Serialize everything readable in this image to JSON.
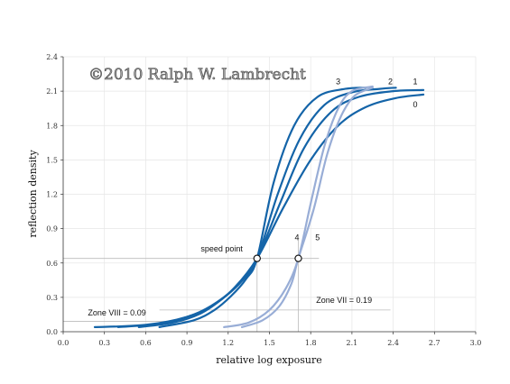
{
  "chart_data": {
    "type": "line",
    "xlabel": "relative log exposure",
    "ylabel": "reflection density",
    "xlim": [
      0.0,
      3.0
    ],
    "ylim": [
      0.0,
      2.4
    ],
    "xticks": [
      "0.0",
      "0.3",
      "0.6",
      "0.9",
      "1.2",
      "1.5",
      "1.8",
      "2.1",
      "2.4",
      "2.7",
      "3.0"
    ],
    "yticks": [
      "0.0",
      "0.3",
      "0.6",
      "0.9",
      "1.2",
      "1.5",
      "1.8",
      "2.1",
      "2.4"
    ],
    "grid": true,
    "watermark": "©2010  Ralph W. Lambrecht",
    "colors": {
      "dark": "#1464a8",
      "light": "#98add6",
      "grid": "#e6e6e6",
      "ref": "#bbbbbb"
    },
    "series": [
      {
        "name": "0",
        "color": "dark",
        "x": [
          0.23,
          0.6,
          0.9,
          1.1,
          1.25,
          1.41,
          1.6,
          1.8,
          2.0,
          2.2,
          2.42,
          2.62
        ],
        "y": [
          0.04,
          0.06,
          0.13,
          0.24,
          0.39,
          0.64,
          1.08,
          1.5,
          1.8,
          1.96,
          2.04,
          2.07
        ]
      },
      {
        "name": "1",
        "color": "dark",
        "x": [
          0.4,
          0.7,
          0.95,
          1.12,
          1.27,
          1.41,
          1.58,
          1.75,
          1.95,
          2.15,
          2.4,
          2.62
        ],
        "y": [
          0.04,
          0.07,
          0.15,
          0.26,
          0.41,
          0.64,
          1.13,
          1.6,
          1.92,
          2.05,
          2.1,
          2.11
        ]
      },
      {
        "name": "2",
        "color": "dark",
        "x": [
          0.55,
          0.8,
          1.0,
          1.15,
          1.29,
          1.41,
          1.56,
          1.72,
          1.9,
          2.1,
          2.3,
          2.42
        ],
        "y": [
          0.04,
          0.08,
          0.16,
          0.28,
          0.43,
          0.64,
          1.2,
          1.68,
          1.98,
          2.09,
          2.12,
          2.13
        ]
      },
      {
        "name": "3",
        "color": "dark",
        "x": [
          0.7,
          0.95,
          1.1,
          1.22,
          1.33,
          1.41,
          1.53,
          1.68,
          1.85,
          2.05,
          2.2
        ],
        "y": [
          0.04,
          0.1,
          0.19,
          0.31,
          0.46,
          0.64,
          1.3,
          1.8,
          2.05,
          2.12,
          2.13
        ]
      },
      {
        "name": "4",
        "color": "light",
        "x": [
          1.17,
          1.35,
          1.5,
          1.62,
          1.71,
          1.8,
          1.9,
          2.0,
          2.1,
          2.25
        ],
        "y": [
          0.04,
          0.08,
          0.19,
          0.38,
          0.64,
          1.12,
          1.62,
          1.95,
          2.1,
          2.14
        ]
      },
      {
        "name": "5",
        "color": "light",
        "x": [
          1.3,
          1.45,
          1.57,
          1.66,
          1.71,
          1.82,
          1.92,
          2.02,
          2.12,
          2.25
        ],
        "y": [
          0.04,
          0.1,
          0.22,
          0.42,
          0.64,
          1.06,
          1.55,
          1.88,
          2.06,
          2.13
        ]
      }
    ],
    "curve_labels": [
      {
        "text": "0",
        "x": 2.56,
        "y": 1.96
      },
      {
        "text": "1",
        "x": 2.56,
        "y": 2.16
      },
      {
        "text": "2",
        "x": 2.38,
        "y": 2.16
      },
      {
        "text": "3",
        "x": 2.0,
        "y": 2.16
      },
      {
        "text": "4",
        "x": 1.7,
        "y": 0.8
      },
      {
        "text": "5",
        "x": 1.85,
        "y": 0.8
      }
    ],
    "points": [
      {
        "label": "speed point",
        "x": 1.41,
        "y": 0.64
      },
      {
        "label": "",
        "x": 1.71,
        "y": 0.64
      }
    ],
    "annotations": [
      {
        "text": "Zone VIII = 0.09",
        "x": 0.18,
        "y": 0.14
      },
      {
        "text": "Zone VII = 0.19",
        "x": 1.84,
        "y": 0.25
      },
      {
        "text": "speed point",
        "x": 1.0,
        "y": 0.7
      }
    ],
    "reference_lines": [
      {
        "type": "h",
        "y": 0.64,
        "x0": 0.0,
        "x1": 1.86
      },
      {
        "type": "v",
        "x": 1.41,
        "y0": 0.0,
        "y1": 0.64
      },
      {
        "type": "v",
        "x": 1.71,
        "y0": 0.0,
        "y1": 0.8
      },
      {
        "type": "h",
        "y": 0.09,
        "x0": 0.0,
        "x1": 1.22
      },
      {
        "type": "h",
        "y": 0.19,
        "x0": 0.7,
        "x1": 2.38
      }
    ]
  }
}
